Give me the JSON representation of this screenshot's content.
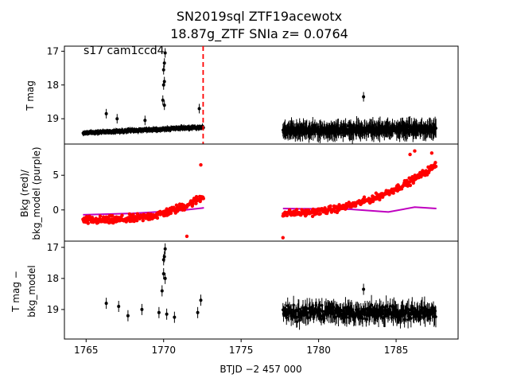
{
  "title_line1": "SN2019sql  ZTF19acewotx",
  "title_line2": "18.87g_ZTF SNIa z= 0.0764",
  "annotation": "s17 cam1ccd4",
  "xlabel": "BTJD −2 457 000",
  "colors": {
    "black": "#000000",
    "red": "#ff0000",
    "purple": "#bf00bf",
    "marker_line": "#ff0000"
  },
  "chart_data": [
    {
      "type": "scatter",
      "panel": "top",
      "ylabel": "T mag",
      "yinverted": true,
      "xlim": [
        1763.6,
        1789.0
      ],
      "ylim": [
        19.75,
        16.85
      ],
      "yticks": [
        17,
        18,
        19
      ],
      "marker_line_x": 1772.55,
      "segments": [
        {
          "x_start": 1764.8,
          "x_end": 1772.6,
          "base_start": 19.42,
          "base_end": 19.25,
          "noise": 0.1
        },
        {
          "x_start": 1777.7,
          "x_end": 1787.6,
          "base_start": 19.35,
          "base_end": 19.3,
          "noise": 0.28
        }
      ],
      "outliers": [
        {
          "x": 1766.3,
          "y": 18.85
        },
        {
          "x": 1767.0,
          "y": 19.0
        },
        {
          "x": 1768.8,
          "y": 19.05
        },
        {
          "x": 1770.0,
          "y": 17.55
        },
        {
          "x": 1770.05,
          "y": 17.35
        },
        {
          "x": 1770.1,
          "y": 17.05
        },
        {
          "x": 1770.0,
          "y": 18.0
        },
        {
          "x": 1770.05,
          "y": 17.9
        },
        {
          "x": 1769.95,
          "y": 18.45
        },
        {
          "x": 1770.05,
          "y": 18.6
        },
        {
          "x": 1782.9,
          "y": 18.35
        },
        {
          "x": 1772.3,
          "y": 18.7
        }
      ]
    },
    {
      "type": "scatter",
      "panel": "middle",
      "ylabel_line1": "Bkg (red)/",
      "ylabel_line2": "bkg_model (purple)",
      "xlim": [
        1763.6,
        1789.0
      ],
      "ylim": [
        -4.5,
        9.5
      ],
      "yticks": [
        0,
        5
      ],
      "red_segments": [
        {
          "x_start": 1764.8,
          "x_end": 1772.6,
          "y_start": -1.5,
          "y_end": 2.0,
          "noise": 1.4
        },
        {
          "x_start": 1777.7,
          "x_end": 1787.6,
          "y_start": -0.5,
          "y_end": 6.5,
          "noise": 1.2
        }
      ],
      "red_peaks": [
        {
          "x": 1772.4,
          "y": 6.5
        },
        {
          "x": 1786.2,
          "y": 8.5
        },
        {
          "x": 1785.9,
          "y": 8.0
        },
        {
          "x": 1787.3,
          "y": 8.2
        },
        {
          "x": 1777.7,
          "y": -4.0
        },
        {
          "x": 1771.5,
          "y": -3.8
        }
      ],
      "purple_line": [
        {
          "x": 1764.8,
          "y": -0.7
        },
        {
          "x": 1768.0,
          "y": -0.5
        },
        {
          "x": 1771.0,
          "y": -0.1
        },
        {
          "x": 1772.6,
          "y": 0.3
        },
        {
          "x": 1777.7,
          "y": 0.2
        },
        {
          "x": 1782.0,
          "y": 0.1
        },
        {
          "x": 1784.5,
          "y": -0.3
        },
        {
          "x": 1786.2,
          "y": 0.4
        },
        {
          "x": 1787.6,
          "y": 0.2
        }
      ]
    },
    {
      "type": "scatter",
      "panel": "bottom",
      "ylabel_line1": "T mag −",
      "ylabel_line2": "bkg_model",
      "yinverted": true,
      "xlim": [
        1763.6,
        1789.0
      ],
      "ylim": [
        19.95,
        16.8
      ],
      "yticks": [
        17,
        18,
        19
      ],
      "xticks": [
        1765,
        1770,
        1775,
        1780,
        1785
      ],
      "points": [
        {
          "x": 1766.3,
          "y": 18.8
        },
        {
          "x": 1767.1,
          "y": 18.9
        },
        {
          "x": 1767.7,
          "y": 19.2
        },
        {
          "x": 1768.6,
          "y": 19.0
        },
        {
          "x": 1769.7,
          "y": 19.1
        },
        {
          "x": 1769.9,
          "y": 18.4
        },
        {
          "x": 1770.0,
          "y": 17.4
        },
        {
          "x": 1770.05,
          "y": 17.3
        },
        {
          "x": 1770.1,
          "y": 17.05
        },
        {
          "x": 1770.0,
          "y": 17.85
        },
        {
          "x": 1770.1,
          "y": 18.0
        },
        {
          "x": 1770.2,
          "y": 19.15
        },
        {
          "x": 1770.7,
          "y": 19.25
        },
        {
          "x": 1772.2,
          "y": 19.1
        },
        {
          "x": 1772.4,
          "y": 18.7
        },
        {
          "x": 1782.9,
          "y": 18.35
        }
      ],
      "dense_segment": {
        "x_start": 1777.7,
        "x_end": 1787.6,
        "base": 19.1,
        "noise": 0.35
      }
    }
  ],
  "x_tick_labels": [
    "1765",
    "1770",
    "1775",
    "1780",
    "1785"
  ]
}
